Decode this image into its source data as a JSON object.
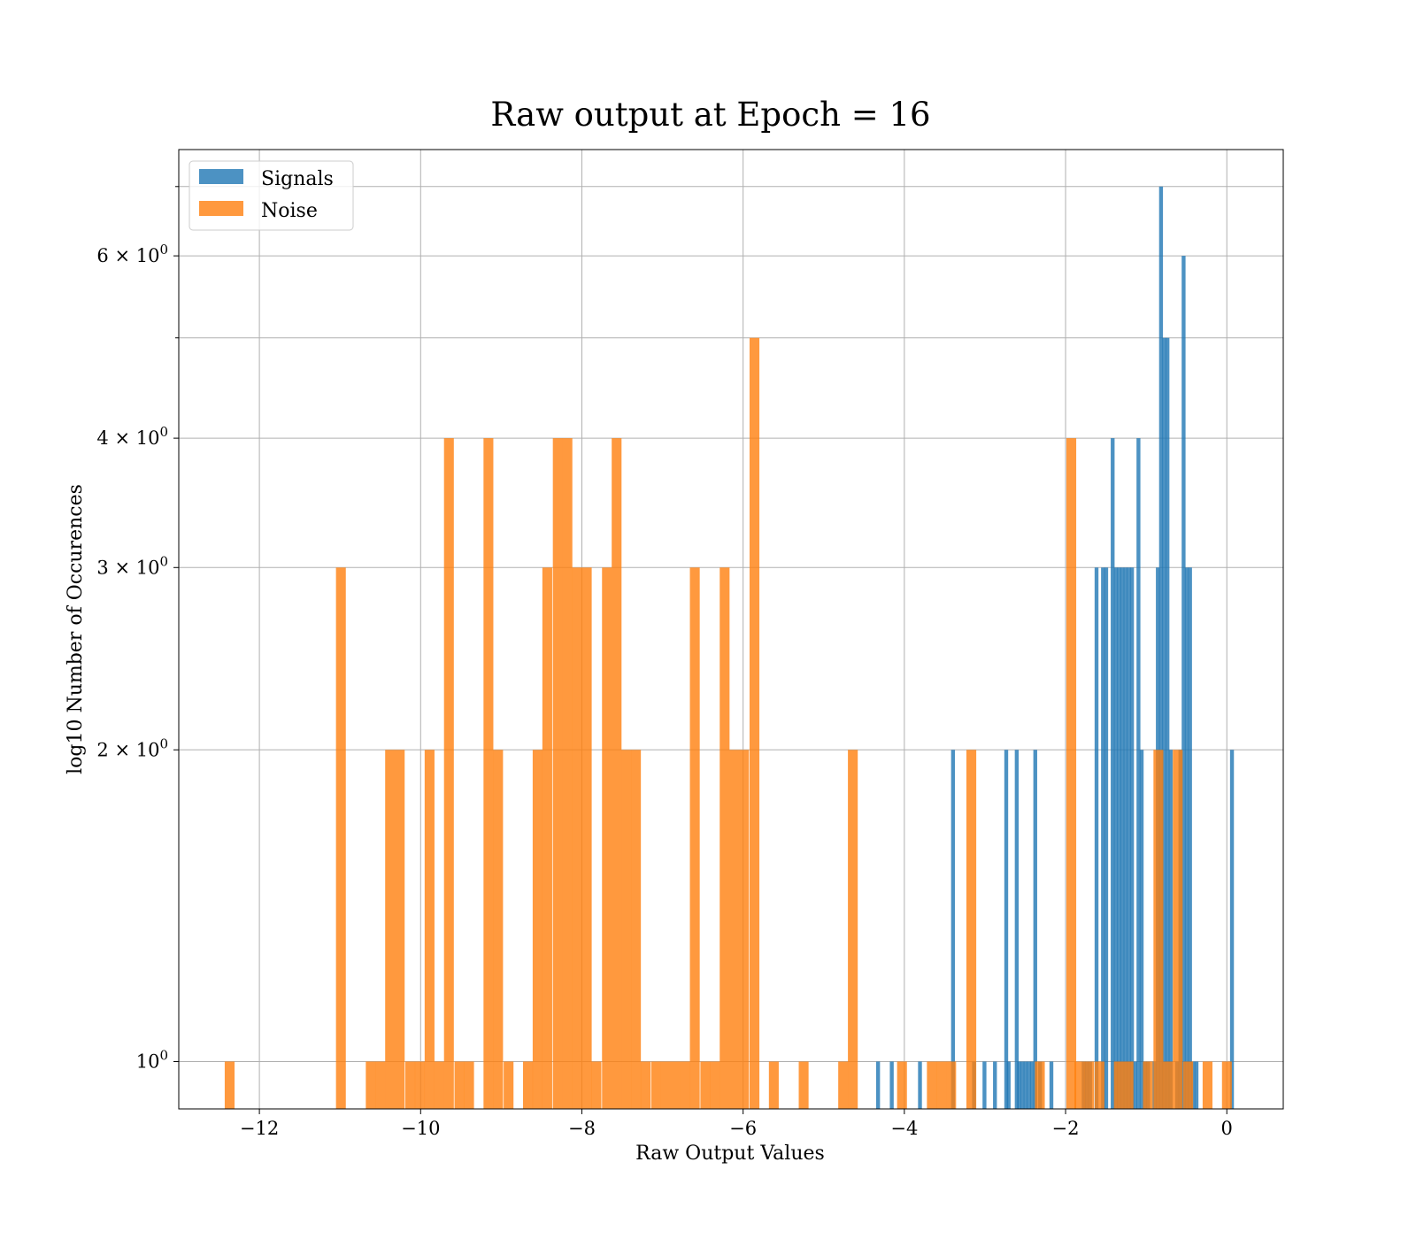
{
  "chart_data": {
    "type": "bar",
    "title": "Raw output at Epoch = 16",
    "xlabel": "Raw Output Values",
    "ylabel": "log10 Number of Occurences",
    "y_scale": "log",
    "xlim": [
      -13.0,
      0.7
    ],
    "ylim": [
      0.9,
      7.6
    ],
    "grid": true,
    "legend_position": "top-left",
    "x_ticks": [
      -12,
      -10,
      -8,
      -6,
      -4,
      -2,
      0
    ],
    "x_tick_labels": [
      "−12",
      "−10",
      "−8",
      "−6",
      "−4",
      "−2",
      "0"
    ],
    "y_ticks_labeled": [
      {
        "value": 1,
        "mantissa": "",
        "exponent": "0",
        "base": "10"
      },
      {
        "value": 2,
        "mantissa": "2",
        "exponent": "0",
        "base": "10"
      },
      {
        "value": 3,
        "mantissa": "3",
        "exponent": "0",
        "base": "10"
      },
      {
        "value": 4,
        "mantissa": "4",
        "exponent": "0",
        "base": "10"
      },
      {
        "value": 6,
        "mantissa": "6",
        "exponent": "0",
        "base": "10"
      }
    ],
    "y_ticks_unlabeled": [
      5,
      7
    ],
    "times_symbol": "×",
    "series": [
      {
        "name": "Signals",
        "color": "#1f77b4",
        "opacity": 0.8,
        "bin_width": 0.048,
        "bins": [
          [
            -4.35,
            1
          ],
          [
            -4.18,
            1
          ],
          [
            -3.83,
            1
          ],
          [
            -3.42,
            2
          ],
          [
            -3.16,
            1
          ],
          [
            -3.03,
            1
          ],
          [
            -2.9,
            1
          ],
          [
            -2.76,
            2
          ],
          [
            -2.73,
            1
          ],
          [
            -2.63,
            2
          ],
          [
            -2.6,
            1
          ],
          [
            -2.56,
            1
          ],
          [
            -2.52,
            1
          ],
          [
            -2.48,
            1
          ],
          [
            -2.44,
            1
          ],
          [
            -2.4,
            2
          ],
          [
            -2.34,
            1
          ],
          [
            -2.2,
            1
          ],
          [
            -1.8,
            1
          ],
          [
            -1.76,
            1
          ],
          [
            -1.72,
            1
          ],
          [
            -1.64,
            3
          ],
          [
            -1.56,
            3
          ],
          [
            -1.52,
            3
          ],
          [
            -1.44,
            4
          ],
          [
            -1.4,
            3
          ],
          [
            -1.36,
            3
          ],
          [
            -1.32,
            3
          ],
          [
            -1.28,
            3
          ],
          [
            -1.24,
            3
          ],
          [
            -1.2,
            3
          ],
          [
            -1.16,
            1
          ],
          [
            -1.12,
            4
          ],
          [
            -1.08,
            2
          ],
          [
            -1.04,
            1
          ],
          [
            -1.0,
            1
          ],
          [
            -0.92,
            1
          ],
          [
            -0.88,
            3
          ],
          [
            -0.84,
            7
          ],
          [
            -0.8,
            5
          ],
          [
            -0.76,
            5
          ],
          [
            -0.72,
            2
          ],
          [
            -0.64,
            1
          ],
          [
            -0.6,
            2
          ],
          [
            -0.56,
            6
          ],
          [
            -0.52,
            3
          ],
          [
            -0.48,
            3
          ],
          [
            -0.44,
            1
          ],
          [
            -0.4,
            1
          ],
          [
            0.04,
            2
          ]
        ]
      },
      {
        "name": "Noise",
        "color": "#ff7f0e",
        "opacity": 0.8,
        "bin_width": 0.122,
        "bins": [
          [
            -12.43,
            1
          ],
          [
            -11.05,
            3
          ],
          [
            -10.68,
            1
          ],
          [
            -10.56,
            1
          ],
          [
            -10.44,
            2
          ],
          [
            -10.32,
            2
          ],
          [
            -10.19,
            1
          ],
          [
            -10.07,
            1
          ],
          [
            -9.95,
            2
          ],
          [
            -9.83,
            1
          ],
          [
            -9.71,
            4
          ],
          [
            -9.58,
            1
          ],
          [
            -9.46,
            1
          ],
          [
            -9.22,
            4
          ],
          [
            -9.1,
            2
          ],
          [
            -8.97,
            1
          ],
          [
            -8.73,
            1
          ],
          [
            -8.61,
            2
          ],
          [
            -8.49,
            3
          ],
          [
            -8.36,
            4
          ],
          [
            -8.24,
            4
          ],
          [
            -8.12,
            3
          ],
          [
            -8.0,
            3
          ],
          [
            -7.88,
            1
          ],
          [
            -7.75,
            3
          ],
          [
            -7.63,
            4
          ],
          [
            -7.51,
            2
          ],
          [
            -7.39,
            2
          ],
          [
            -7.27,
            1
          ],
          [
            -7.14,
            1
          ],
          [
            -7.02,
            1
          ],
          [
            -6.9,
            1
          ],
          [
            -6.78,
            1
          ],
          [
            -6.66,
            3
          ],
          [
            -6.53,
            1
          ],
          [
            -6.41,
            1
          ],
          [
            -6.29,
            3
          ],
          [
            -6.17,
            2
          ],
          [
            -6.05,
            2
          ],
          [
            -5.92,
            5
          ],
          [
            -5.68,
            1
          ],
          [
            -5.31,
            1
          ],
          [
            -4.82,
            1
          ],
          [
            -4.7,
            2
          ],
          [
            -4.09,
            1
          ],
          [
            -3.72,
            1
          ],
          [
            -3.6,
            1
          ],
          [
            -3.48,
            1
          ],
          [
            -3.23,
            2
          ],
          [
            -2.38,
            1
          ],
          [
            -1.99,
            4
          ],
          [
            -1.89,
            1
          ],
          [
            -1.77,
            1
          ],
          [
            -1.64,
            1
          ],
          [
            -1.4,
            1
          ],
          [
            -1.28,
            1
          ],
          [
            -1.04,
            1
          ],
          [
            -0.91,
            2
          ],
          [
            -0.79,
            1
          ],
          [
            -0.67,
            2
          ],
          [
            -0.54,
            1
          ],
          [
            -0.3,
            1
          ],
          [
            -0.06,
            1
          ]
        ]
      }
    ]
  }
}
